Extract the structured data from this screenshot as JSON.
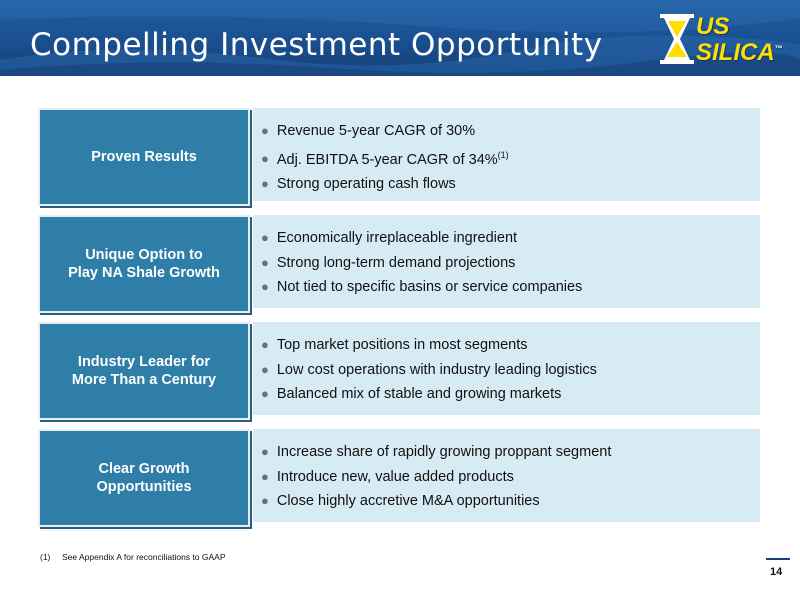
{
  "header": {
    "title": "Compelling Investment Opportunity",
    "logo": {
      "line1": "US",
      "line2": "SILICA",
      "tm": "™"
    }
  },
  "rows": [
    {
      "label": "Proven Results",
      "bullets": [
        {
          "text": "Revenue 5-year CAGR of 30%",
          "sup": ""
        },
        {
          "text": "Adj. EBITDA 5-year CAGR of 34%",
          "sup": "(1)"
        },
        {
          "text": "Strong operating cash flows",
          "sup": ""
        }
      ]
    },
    {
      "label": "Unique Option to\nPlay NA Shale Growth",
      "bullets": [
        {
          "text": "Economically irreplaceable ingredient",
          "sup": ""
        },
        {
          "text": "Strong long-term demand projections",
          "sup": ""
        },
        {
          "text": "Not tied to specific basins or service companies",
          "sup": ""
        }
      ]
    },
    {
      "label": "Industry Leader for\nMore Than a Century",
      "bullets": [
        {
          "text": "Top market positions in most segments",
          "sup": ""
        },
        {
          "text": "Low cost operations with industry leading logistics",
          "sup": ""
        },
        {
          "text": "Balanced mix of stable and growing markets",
          "sup": ""
        }
      ]
    },
    {
      "label": "Clear Growth\nOpportunities",
      "bullets": [
        {
          "text": "Increase share of rapidly growing proppant segment",
          "sup": ""
        },
        {
          "text": "Introduce new, value added products",
          "sup": ""
        },
        {
          "text": "Close highly accretive M&A opportunities",
          "sup": ""
        }
      ]
    }
  ],
  "bullet_glyph": "●",
  "footnote": {
    "num": "(1)",
    "text": "See Appendix A for reconciliations to GAAP"
  },
  "page_number": "14",
  "colors": {
    "banner": "#1a4f8f",
    "label_box": "#2f7ea8",
    "content_box": "#d6ebf3",
    "logo_yellow": "#ffde00"
  }
}
